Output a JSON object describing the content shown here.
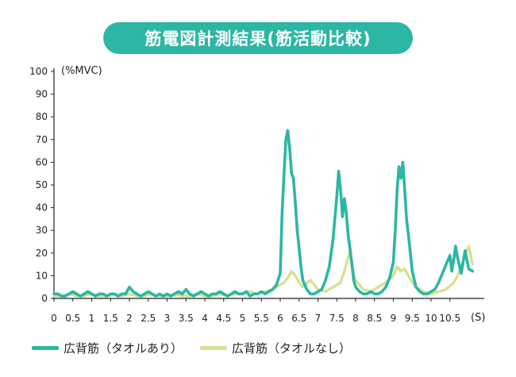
{
  "chart_data": {
    "type": "line",
    "title": "筋電図計測結果(筋活動比較)",
    "ylabel": "(%MVC)",
    "xlabel": "(S)",
    "xlim": [
      0,
      11.2
    ],
    "ylim": [
      0,
      100
    ],
    "yticks": [
      "0",
      "10",
      "20",
      "30",
      "40",
      "50",
      "60",
      "70",
      "80",
      "90",
      "100"
    ],
    "xticks": [
      "0",
      "0.5",
      "1",
      "1.5",
      "2",
      "2.5",
      "3",
      "3.5",
      "4",
      "4.5",
      "5",
      "5.5",
      "6",
      "6.5",
      "7",
      "7.5",
      "8",
      "8.5",
      "9",
      "9.5",
      "10",
      "10.5"
    ],
    "xtick_values": [
      0,
      0.5,
      1,
      1.5,
      2,
      2.5,
      3,
      3.5,
      4,
      4.5,
      5,
      5.5,
      6,
      6.5,
      7,
      7.5,
      8,
      8.5,
      9,
      9.5,
      10,
      10.5
    ],
    "grid": false,
    "legend_position": "bottom-left",
    "series": [
      {
        "name": "広背筋（タオルあり）",
        "color": "#2bb7a3",
        "x": [
          0,
          0.1,
          0.2,
          0.3,
          0.4,
          0.5,
          0.6,
          0.7,
          0.8,
          0.9,
          1.0,
          1.1,
          1.2,
          1.3,
          1.4,
          1.5,
          1.6,
          1.7,
          1.8,
          1.9,
          2.0,
          2.1,
          2.2,
          2.3,
          2.4,
          2.5,
          2.6,
          2.7,
          2.8,
          2.9,
          3.0,
          3.1,
          3.2,
          3.3,
          3.4,
          3.5,
          3.6,
          3.7,
          3.8,
          3.9,
          4.0,
          4.1,
          4.2,
          4.3,
          4.4,
          4.5,
          4.6,
          4.7,
          4.8,
          4.9,
          5.0,
          5.1,
          5.2,
          5.3,
          5.4,
          5.5,
          5.6,
          5.7,
          5.8,
          5.9,
          6.0,
          6.05,
          6.1,
          6.15,
          6.2,
          6.25,
          6.3,
          6.35,
          6.4,
          6.45,
          6.5,
          6.55,
          6.6,
          6.7,
          6.8,
          6.9,
          7.0,
          7.1,
          7.2,
          7.3,
          7.4,
          7.5,
          7.55,
          7.6,
          7.65,
          7.7,
          7.75,
          7.8,
          7.85,
          7.9,
          7.95,
          8.0,
          8.1,
          8.2,
          8.3,
          8.4,
          8.5,
          8.6,
          8.7,
          8.8,
          8.9,
          9.0,
          9.05,
          9.1,
          9.15,
          9.2,
          9.25,
          9.3,
          9.35,
          9.4,
          9.5,
          9.6,
          9.7,
          9.8,
          9.9,
          10.0,
          10.1,
          10.2,
          10.3,
          10.4,
          10.5,
          10.55,
          10.6,
          10.65,
          10.7,
          10.8,
          10.9,
          11.0,
          11.1
        ],
        "y": [
          2,
          2,
          1,
          1,
          2,
          3,
          2,
          1,
          2,
          3,
          2,
          1,
          2,
          2,
          1,
          2,
          2,
          1,
          2,
          2,
          5,
          3,
          2,
          1,
          2,
          3,
          2,
          1,
          2,
          1,
          2,
          1,
          2,
          3,
          2,
          4,
          2,
          1,
          2,
          3,
          2,
          1,
          2,
          2,
          3,
          2,
          1,
          2,
          3,
          2,
          2,
          3,
          1,
          2,
          2,
          3,
          2,
          3,
          4,
          6,
          11,
          38,
          55,
          70,
          74,
          66,
          55,
          53,
          42,
          30,
          22,
          14,
          8,
          4,
          2,
          2,
          3,
          4,
          8,
          14,
          26,
          45,
          56,
          48,
          36,
          44,
          38,
          28,
          22,
          15,
          8,
          5,
          3,
          2,
          2,
          3,
          2,
          2,
          3,
          5,
          9,
          16,
          30,
          48,
          58,
          53,
          60,
          48,
          35,
          28,
          12,
          5,
          3,
          2,
          2,
          3,
          4,
          7,
          11,
          15,
          19,
          12,
          17,
          23,
          18,
          11,
          21,
          13,
          12
        ]
      },
      {
        "name": "広背筋（タオルなし）",
        "color": "#d6e08c",
        "x": [
          0,
          0.2,
          0.4,
          0.6,
          0.8,
          1.0,
          1.2,
          1.4,
          1.6,
          1.8,
          2.0,
          2.2,
          2.4,
          2.6,
          2.8,
          3.0,
          3.2,
          3.4,
          3.6,
          3.8,
          4.0,
          4.2,
          4.4,
          4.6,
          4.8,
          5.0,
          5.2,
          5.4,
          5.6,
          5.8,
          6.0,
          6.1,
          6.2,
          6.3,
          6.4,
          6.5,
          6.6,
          6.8,
          7.0,
          7.2,
          7.4,
          7.6,
          7.7,
          7.8,
          7.85,
          7.9,
          8.0,
          8.1,
          8.2,
          8.4,
          8.6,
          8.8,
          9.0,
          9.1,
          9.2,
          9.3,
          9.4,
          9.5,
          9.6,
          9.8,
          10.0,
          10.2,
          10.4,
          10.6,
          10.7,
          10.8,
          10.9,
          11.0,
          11.1
        ],
        "y": [
          1,
          1,
          2,
          1,
          1,
          2,
          1,
          1,
          2,
          1,
          2,
          1,
          1,
          2,
          1,
          1,
          2,
          1,
          1,
          2,
          1,
          1,
          2,
          1,
          2,
          2,
          3,
          2,
          3,
          4,
          6,
          7,
          9,
          12,
          10,
          7,
          5,
          8,
          4,
          3,
          5,
          7,
          12,
          18,
          21,
          15,
          8,
          6,
          4,
          3,
          5,
          7,
          10,
          14,
          12,
          13,
          10,
          7,
          5,
          3,
          2,
          3,
          4,
          7,
          10,
          14,
          19,
          23,
          15
        ]
      }
    ]
  }
}
